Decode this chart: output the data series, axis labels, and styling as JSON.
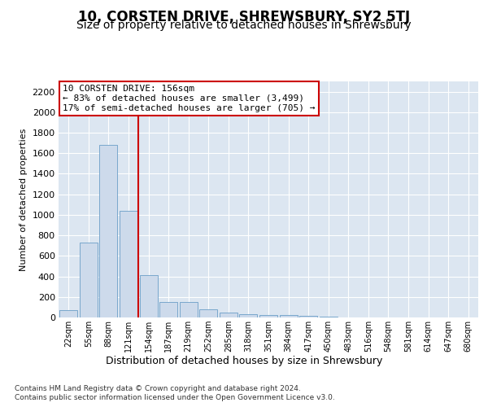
{
  "title": "10, CORSTEN DRIVE, SHREWSBURY, SY2 5TJ",
  "subtitle": "Size of property relative to detached houses in Shrewsbury",
  "xlabel": "Distribution of detached houses by size in Shrewsbury",
  "ylabel": "Number of detached properties",
  "footer_line1": "Contains HM Land Registry data © Crown copyright and database right 2024.",
  "footer_line2": "Contains public sector information licensed under the Open Government Licence v3.0.",
  "annotation_line1": "10 CORSTEN DRIVE: 156sqm",
  "annotation_line2": "← 83% of detached houses are smaller (3,499)",
  "annotation_line3": "17% of semi-detached houses are larger (705) →",
  "bar_labels": [
    "22sqm",
    "55sqm",
    "88sqm",
    "121sqm",
    "154sqm",
    "187sqm",
    "219sqm",
    "252sqm",
    "285sqm",
    "318sqm",
    "351sqm",
    "384sqm",
    "417sqm",
    "450sqm",
    "483sqm",
    "516sqm",
    "548sqm",
    "581sqm",
    "614sqm",
    "647sqm",
    "680sqm"
  ],
  "bar_values": [
    75,
    730,
    1680,
    1040,
    415,
    150,
    150,
    80,
    45,
    35,
    25,
    20,
    15,
    5,
    3,
    1,
    1,
    0,
    0,
    0,
    0
  ],
  "bar_color": "#cddaeb",
  "bar_edge_color": "#6a9ec7",
  "vline_x_index": 4,
  "vline_color": "#cc0000",
  "ylim": [
    0,
    2300
  ],
  "yticks": [
    0,
    200,
    400,
    600,
    800,
    1000,
    1200,
    1400,
    1600,
    1800,
    2000,
    2200
  ],
  "plot_bg_color": "#dce6f1",
  "title_fontsize": 12,
  "subtitle_fontsize": 10,
  "annotation_fontsize": 8,
  "annotation_box_color": "#cc0000",
  "figsize": [
    6.0,
    5.0
  ],
  "dpi": 100
}
